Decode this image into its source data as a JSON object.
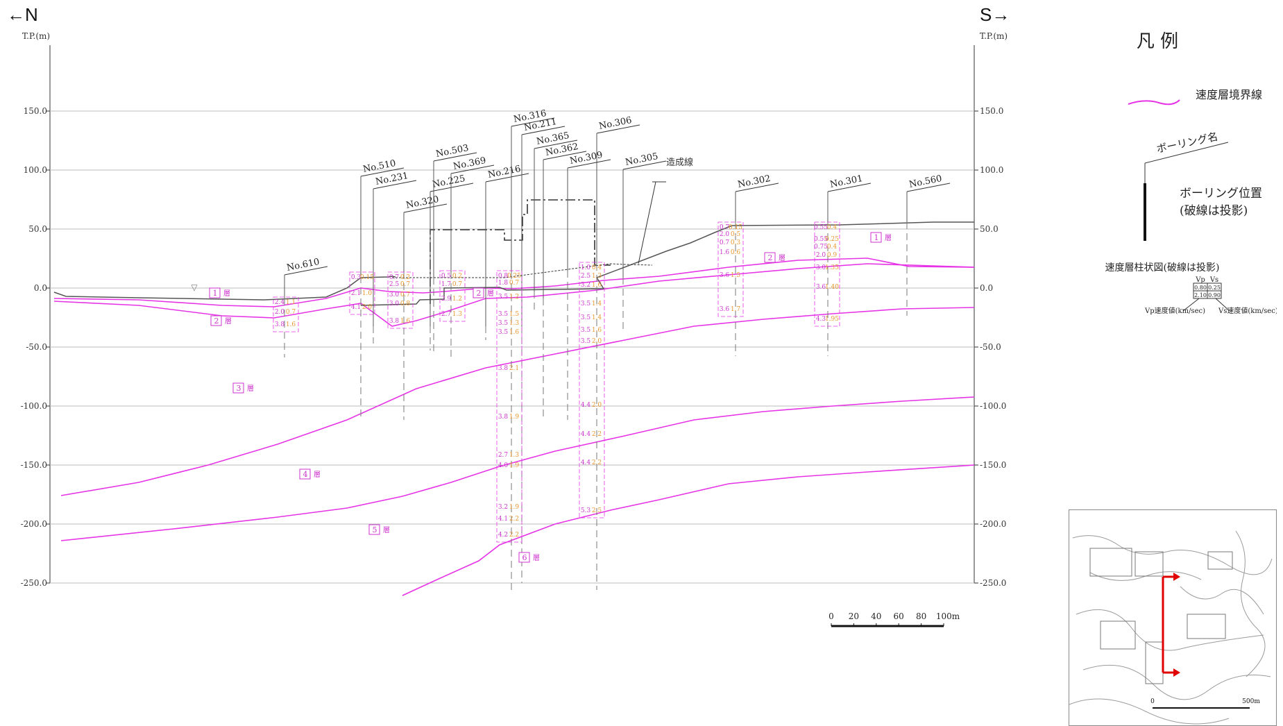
{
  "directions": {
    "north": "←N",
    "south": "S→"
  },
  "axis": {
    "left_label": "T.P.(m)",
    "right_label": "T.P.(m)",
    "ticks": [
      150,
      100,
      50,
      0,
      -50,
      -100,
      -150,
      -200,
      -250
    ],
    "tick_labels": [
      "150.0",
      "100.0",
      "50.0",
      "0.0",
      "-50.0",
      "-100.0",
      "-150.0",
      "-200.0",
      "-250.0"
    ],
    "ylim": [
      -250,
      175
    ]
  },
  "legend": {
    "title": "凡 例",
    "boundary_line": "速度層境界線",
    "boring_name": "ボーリング名",
    "boring_position_1": "ボーリング位置",
    "boring_position_2": "(破線は投影)",
    "column_title": "速度層柱状図(破線は投影)",
    "vp_head": "Vp",
    "vs_head": "Vs",
    "cells": [
      "0.80",
      "0.25",
      "2.10",
      "0.90"
    ],
    "vp_note": "Vp速度値(km/sec)",
    "vs_note": "Vs速度値(km/sec)",
    "colors": {
      "boundary": "#e633e6",
      "vp": "#cc33cc",
      "vs": "#e8962e",
      "ground": "#555555"
    }
  },
  "scale_bar": {
    "labels": [
      "0",
      "20",
      "40",
      "60",
      "80",
      "100m"
    ]
  },
  "annotations": {
    "fill_line": "造成線",
    "water_symbol": "▽"
  },
  "layers": [
    {
      "label": "1",
      "suffix": "層"
    },
    {
      "label": "2",
      "suffix": "層"
    },
    {
      "label": "2",
      "suffix": "層"
    },
    {
      "label": "1",
      "suffix": "層"
    },
    {
      "label": "2",
      "suffix": "層"
    },
    {
      "label": "3",
      "suffix": "層"
    },
    {
      "label": "4",
      "suffix": "層"
    },
    {
      "label": "5",
      "suffix": "層"
    },
    {
      "label": "6",
      "suffix": "層"
    }
  ],
  "borings": [
    {
      "name": "No.610",
      "values": [
        [
          "2.4",
          "1.1"
        ],
        [
          "2.0",
          "0.7"
        ],
        [
          "3.8",
          "1.6"
        ]
      ]
    },
    {
      "name": "No.510",
      "values": [
        [
          "0.3",
          "0.15"
        ],
        [
          "2.1",
          "1.0"
        ],
        [
          "4.1",
          "2.0"
        ]
      ]
    },
    {
      "name": "No.231",
      "values": []
    },
    {
      "name": "No.320",
      "values": [
        [
          "0.7",
          "0.2"
        ],
        [
          "2.5",
          "0.7"
        ],
        [
          "3.0",
          "0.7"
        ],
        [
          "3.0",
          "0.8"
        ],
        [
          "3.8",
          "1.6"
        ]
      ]
    },
    {
      "name": "No.225",
      "values": []
    },
    {
      "name": "No.503",
      "values": []
    },
    {
      "name": "No.369",
      "values": [
        [
          "0.5",
          "0.2"
        ],
        [
          "1.7",
          "0.7"
        ],
        [
          "2.9",
          "1.2"
        ],
        [
          "2.7",
          "1.3"
        ]
      ]
    },
    {
      "name": "No.216",
      "values": []
    },
    {
      "name": "No.316",
      "values": [
        [
          "0.8",
          "0.25"
        ],
        [
          "1.8",
          "0.7"
        ],
        [
          "3.5",
          "1.2"
        ],
        [
          "3.5",
          "1.5"
        ],
        [
          "3.5",
          "1.3"
        ],
        [
          "3.5",
          "1.6"
        ],
        [
          "3.8",
          "2.1"
        ],
        [
          "3.8",
          "1.9"
        ],
        [
          "2.7",
          "1.3"
        ],
        [
          "4.0",
          "1.9"
        ],
        [
          "3.2",
          "1.9"
        ],
        [
          "4.1",
          "2.2"
        ],
        [
          "4.2",
          "2.2"
        ]
      ]
    },
    {
      "name": "No.211",
      "values": []
    },
    {
      "name": "No.365",
      "values": []
    },
    {
      "name": "No.362",
      "values": []
    },
    {
      "name": "No.306",
      "values": [
        [
          "1.0",
          "0.4"
        ],
        [
          "2.5",
          "1.3"
        ],
        [
          "3.2",
          "1.6"
        ],
        [
          "3.5",
          "1.4"
        ],
        [
          "3.5",
          "1.4"
        ],
        [
          "3.5",
          "1.6"
        ],
        [
          "3.5",
          "2.0"
        ],
        [
          "4.4",
          "2.0"
        ],
        [
          "4.4",
          "2.2"
        ],
        [
          "4.4",
          "2.2"
        ],
        [
          "5.3",
          "2.5"
        ]
      ]
    },
    {
      "name": "No.309",
      "values": []
    },
    {
      "name": "No.305",
      "values": []
    },
    {
      "name": "No.302",
      "values": [
        [
          "0.7",
          "0.15"
        ],
        [
          "2.0",
          "0.5"
        ],
        [
          "0.7",
          "0.3"
        ],
        [
          "1.6",
          "0.6"
        ],
        [
          "3.6",
          "1.5"
        ],
        [
          "3.6",
          "1.7"
        ]
      ]
    },
    {
      "name": "No.301",
      "values": [
        [
          "0.55",
          "0.4"
        ],
        [
          "0.55",
          "0.25"
        ],
        [
          "0.75",
          "0.4"
        ],
        [
          "2.0",
          "0.9"
        ],
        [
          "3.0",
          "1.35"
        ],
        [
          "3.6",
          "1.40"
        ],
        [
          "4.3",
          "1.95"
        ]
      ]
    },
    {
      "name": "No.560",
      "values": []
    }
  ],
  "minimap": {
    "scale_labels": [
      "0",
      "500m"
    ]
  }
}
